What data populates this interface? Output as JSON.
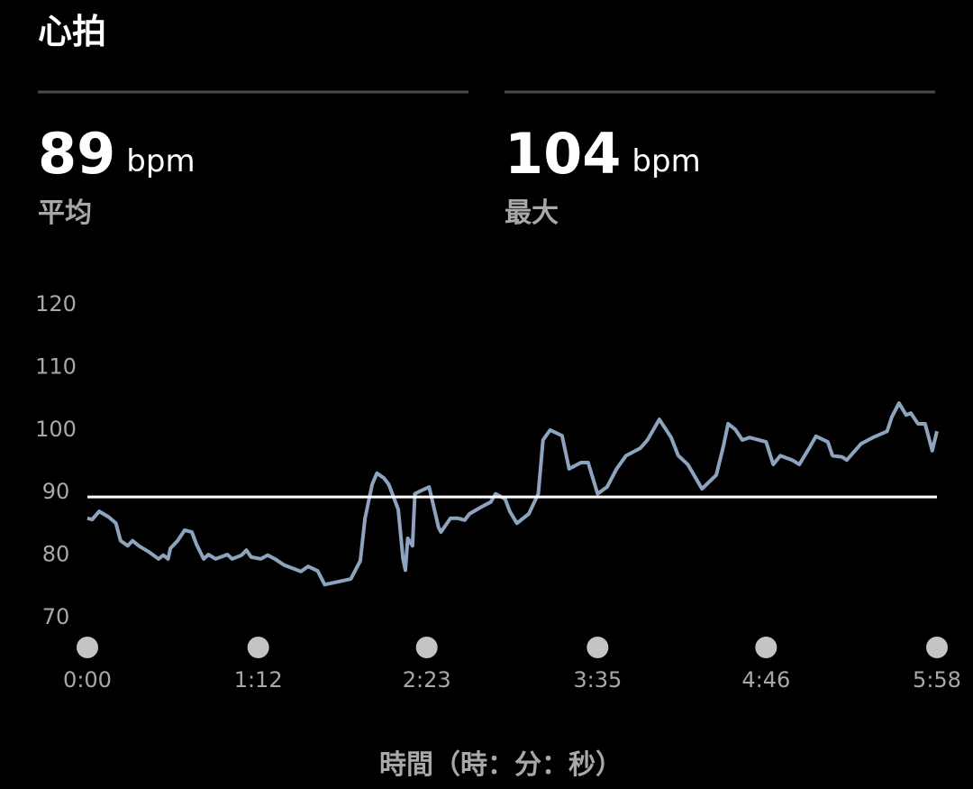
{
  "header": {
    "title": "心拍"
  },
  "stats": [
    {
      "value": 89,
      "unit": "bpm",
      "label": "平均"
    },
    {
      "value": 104,
      "unit": "bpm",
      "label": "最大"
    }
  ],
  "chart_data": {
    "type": "line",
    "x_label": "時間（時：分：秒）",
    "xlim": [
      0,
      358
    ],
    "xticks": [
      {
        "value": 0,
        "label": "0:00"
      },
      {
        "value": 72,
        "label": "1:12"
      },
      {
        "value": 143,
        "label": "2:23"
      },
      {
        "value": 215,
        "label": "3:35"
      },
      {
        "value": 286,
        "label": "4:46"
      },
      {
        "value": 358,
        "label": "5:58"
      }
    ],
    "ylim": [
      70,
      120
    ],
    "yticks": [
      70,
      80,
      90,
      100,
      110,
      120
    ],
    "series": [
      {
        "color": "#8ea4be",
        "x": [
          0,
          2,
          5,
          9,
          12,
          14,
          17,
          19,
          22,
          26,
          30,
          32,
          34,
          35,
          38,
          41,
          44,
          46,
          49,
          51,
          54,
          59,
          61,
          65,
          67,
          69,
          73,
          76,
          79,
          83,
          90,
          93,
          97,
          100,
          111,
          115,
          117,
          120,
          122,
          125,
          127,
          131,
          133,
          134,
          135,
          137,
          138,
          140,
          144,
          148,
          149,
          153,
          156,
          159,
          161,
          166,
          170,
          172,
          176,
          178,
          181,
          186,
          190,
          192,
          195,
          200,
          203,
          208,
          211,
          215,
          219,
          223,
          227,
          233,
          236,
          241,
          246,
          249,
          253,
          259,
          265,
          268,
          270,
          273,
          276,
          279,
          286,
          289,
          292,
          297,
          300,
          304,
          307,
          312,
          314,
          318,
          320,
          326,
          331,
          337,
          339,
          342,
          345,
          347,
          350,
          353,
          356,
          358
        ],
        "values": [
          85.6,
          85.4,
          86.7,
          85.8,
          84.8,
          82,
          81.2,
          82,
          81.1,
          80.2,
          79.1,
          79.7,
          79.1,
          80.8,
          82,
          83.7,
          83.4,
          81.4,
          79.1,
          79.8,
          79.1,
          79.8,
          79.1,
          79.7,
          80.5,
          79.4,
          79.1,
          79.7,
          79.1,
          78.1,
          77.1,
          77.9,
          77.2,
          75,
          75.9,
          78.8,
          85.6,
          91,
          92.8,
          92,
          91,
          87,
          79.1,
          77.3,
          82.4,
          81.2,
          89.5,
          89.9,
          90.6,
          84.1,
          83.4,
          85.6,
          85.6,
          85.3,
          86.3,
          87.4,
          88.2,
          89.5,
          88.7,
          86.7,
          84.8,
          86.3,
          89.5,
          98.1,
          99.7,
          98.8,
          93.5,
          94.5,
          94.5,
          89.5,
          90.6,
          93.5,
          95.6,
          96.8,
          98.1,
          101.4,
          98.5,
          95.6,
          94.2,
          90.3,
          92.5,
          97.1,
          100.7,
          99.8,
          98.1,
          98.5,
          97.8,
          94.2,
          95.6,
          94.9,
          94.2,
          96.7,
          98.7,
          97.8,
          95.6,
          95.4,
          94.9,
          97.5,
          98.5,
          99.5,
          101.8,
          104,
          102.1,
          102.4,
          100.7,
          100.7,
          96.4,
          99.5
        ]
      }
    ]
  }
}
